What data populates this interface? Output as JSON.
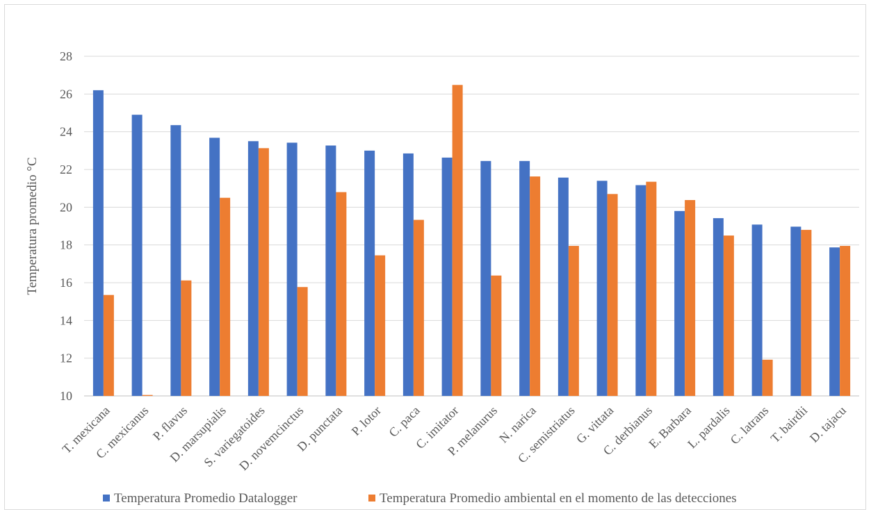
{
  "chart_data": {
    "type": "bar",
    "title": "",
    "xlabel": "",
    "ylabel": "Temperatura promedio °C",
    "ylim": [
      10,
      28
    ],
    "yticks": [
      10,
      12,
      14,
      16,
      18,
      20,
      22,
      24,
      26,
      28
    ],
    "grid": true,
    "legend_position": "bottom",
    "categories": [
      "T. mexicana",
      "C. mexicanus",
      "P. flavus",
      "D. marsupialis",
      "S. variegatoides",
      "D. novemcinctus",
      "D. punctata",
      "P. lotor",
      "C. paca",
      "C. imitator",
      "P. melanurus",
      "N. narica",
      "C. semistriatus",
      "G. vittata",
      "C. derbianus",
      "E. Barbara",
      "L. pardalis",
      "C. latrans",
      "T. bairdii",
      "D. tajacu"
    ],
    "series": [
      {
        "name": "Temperatura Promedio Datalogger",
        "color": "#4472c4",
        "values": [
          26.2,
          24.9,
          24.35,
          23.68,
          23.5,
          23.42,
          23.27,
          23.0,
          22.85,
          22.63,
          22.45,
          22.45,
          21.57,
          21.4,
          21.17,
          19.8,
          19.42,
          19.08,
          18.97,
          17.87
        ]
      },
      {
        "name": "Temperatura Promedio ambiental en el momento de las detecciones",
        "color": "#ed7d31",
        "values": [
          15.35,
          10.05,
          16.12,
          20.5,
          23.13,
          15.77,
          20.8,
          17.45,
          19.33,
          26.48,
          16.38,
          21.63,
          17.95,
          20.7,
          21.35,
          20.38,
          18.5,
          11.92,
          18.8,
          17.95
        ]
      }
    ]
  }
}
